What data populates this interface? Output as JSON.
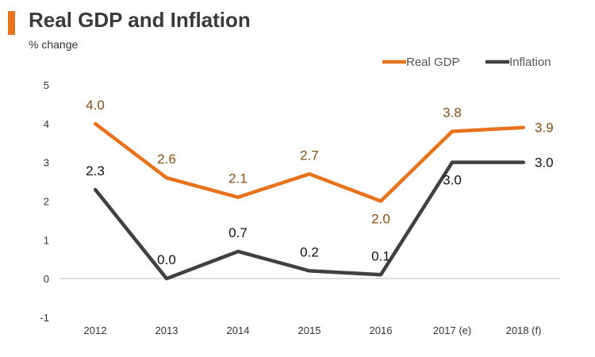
{
  "chart_data": {
    "type": "line",
    "title": "Real GDP and Inflation",
    "subtitle": "% change",
    "categories": [
      "2012",
      "2013",
      "2014",
      "2015",
      "2016",
      "2017 (e)",
      "2018 (f)"
    ],
    "series": [
      {
        "name": "Real GDP",
        "values": [
          4.0,
          2.6,
          2.1,
          2.7,
          2.0,
          3.8,
          3.9
        ],
        "labels": [
          "4.0",
          "2.6",
          "2.1",
          "2.7",
          "2.0",
          "3.8",
          "3.9"
        ],
        "color": "#e8731c",
        "label_color": "#8a4e12"
      },
      {
        "name": "Inflation",
        "values": [
          2.3,
          0.0,
          0.7,
          0.2,
          0.1,
          3.0,
          3.0
        ],
        "labels": [
          "2.3",
          "0.0",
          "0.7",
          "0.2",
          "0.1",
          "3.0",
          "3.0"
        ],
        "color": "#404040",
        "label_color": "#111111"
      }
    ],
    "yticks": [
      "5",
      "4",
      "3",
      "2",
      "1",
      "0",
      "-1"
    ],
    "ylim": [
      -1,
      5
    ],
    "grid": false,
    "legend_position": "top-right"
  },
  "colors": {
    "accent": "#e8731c"
  }
}
